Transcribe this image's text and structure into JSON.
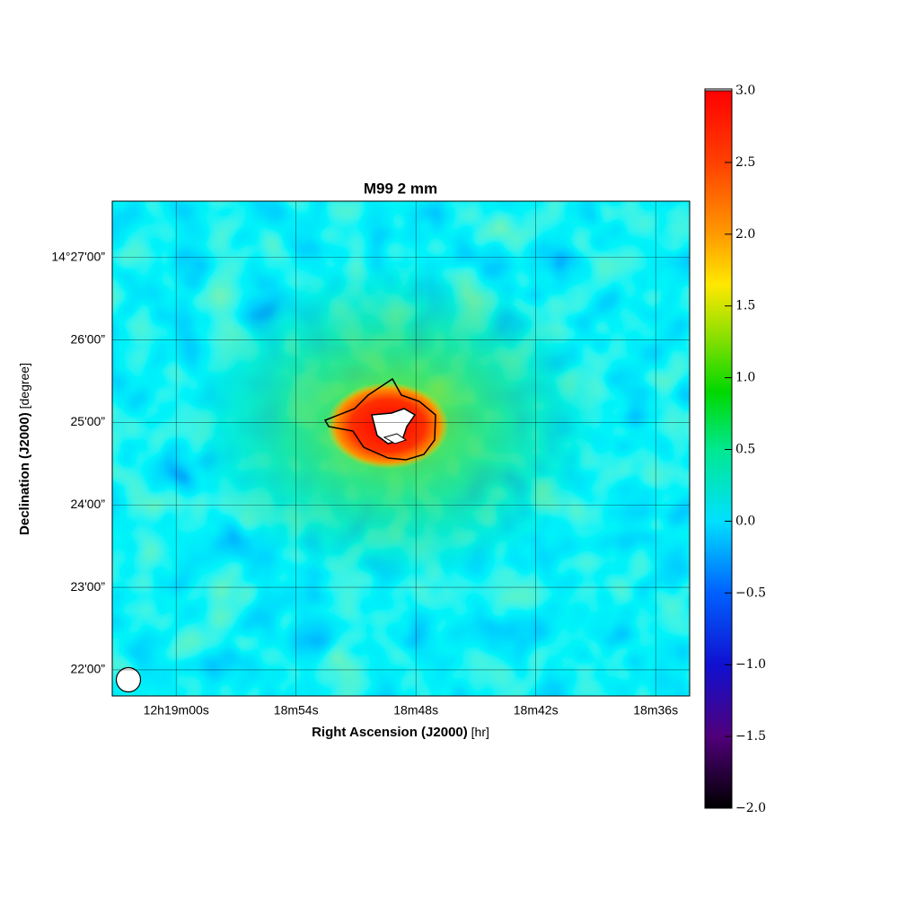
{
  "chart_data": {
    "type": "image",
    "title": "M99 2 mm",
    "xlabel": "Right Ascension (J2000)",
    "xlabel_unit": "[hr]",
    "ylabel": "Declination (J2000)",
    "ylabel_unit": "[degree]",
    "xlim": [
      44343.2,
      44314.3
    ],
    "xticks": [
      {
        "value": 44340,
        "label": "12h19m00s"
      },
      {
        "value": 44334,
        "label": "18m54s"
      },
      {
        "value": 44328,
        "label": "18m48s"
      },
      {
        "value": 44322,
        "label": "18m42s"
      },
      {
        "value": 44316,
        "label": "18m36s"
      }
    ],
    "ylim": [
      51701,
      52061
    ],
    "yticks": [
      {
        "value": 52020,
        "label": "14°27'00”"
      },
      {
        "value": 51960,
        "label": "26'00”"
      },
      {
        "value": 51900,
        "label": "25'00”"
      },
      {
        "value": 51840,
        "label": "24'00”"
      },
      {
        "value": 51780,
        "label": "23'00”"
      },
      {
        "value": 51720,
        "label": "22'00”"
      }
    ],
    "grid": true,
    "colorbar": {
      "clim": [
        -2,
        3
      ],
      "ticks": [
        {
          "value": -2,
          "label": "−2.0"
        },
        {
          "value": -1.5,
          "label": "−1.5"
        },
        {
          "value": -1,
          "label": "−1.0"
        },
        {
          "value": -0.5,
          "label": "−0.5"
        },
        {
          "value": 0,
          "label": "0.0"
        },
        {
          "value": 0.5,
          "label": "0.5"
        },
        {
          "value": 1,
          "label": "1.0"
        },
        {
          "value": 1.5,
          "label": "1.5"
        },
        {
          "value": 2,
          "label": "2.0"
        },
        {
          "value": 2.5,
          "label": "2.5"
        },
        {
          "value": 3,
          "label": "3.0"
        }
      ]
    }
  }
}
